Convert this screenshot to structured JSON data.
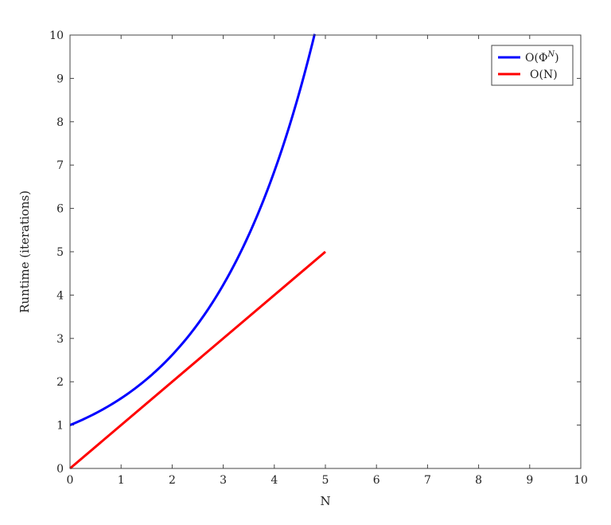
{
  "chart_data": {
    "type": "line",
    "title": "",
    "xlabel": "N",
    "ylabel": "Runtime (iterations)",
    "xlim": [
      0,
      10
    ],
    "ylim": [
      0,
      10
    ],
    "xticks": [
      0,
      1,
      2,
      3,
      4,
      5,
      6,
      7,
      8,
      9,
      10
    ],
    "yticks": [
      0,
      1,
      2,
      3,
      4,
      5,
      6,
      7,
      8,
      9,
      10
    ],
    "grid": false,
    "legend_position": "top-right",
    "series": [
      {
        "name": "O(Φ^N)",
        "legend_base": "O(Φ",
        "legend_sup": "N",
        "legend_tail": ")",
        "color": "#0000ff",
        "x": [
          0,
          0.5,
          1,
          1.5,
          2,
          2.5,
          3,
          3.5,
          4,
          4.5,
          4.79
        ],
        "y": [
          1,
          1.27,
          1.62,
          2.06,
          2.62,
          3.33,
          4.24,
          5.39,
          6.85,
          8.72,
          10
        ]
      },
      {
        "name": "O(N)",
        "color": "#ff0000",
        "x": [
          0,
          5
        ],
        "y": [
          0,
          5
        ]
      }
    ]
  }
}
